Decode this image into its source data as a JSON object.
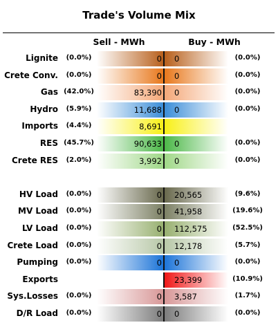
{
  "title": "Trade's Volume Mix",
  "headers": {
    "sell": "Sell - MWh",
    "buy": "Buy - MWh"
  },
  "chart_data": {
    "type": "table",
    "title": "Trade's Volume Mix",
    "columns": [
      "Sell - MWh",
      "Buy - MWh"
    ],
    "rows": [
      {
        "name": "Lignite",
        "sell_pct": "(0.0%)",
        "sell": "0",
        "buy": "0",
        "buy_pct": "(0.0%)",
        "color": "#b8601c"
      },
      {
        "name": "Crete Conv.",
        "sell_pct": "(0.0%)",
        "sell": "0",
        "buy": "0",
        "buy_pct": "(0.0%)",
        "color": "#e8781c"
      },
      {
        "name": "Gas",
        "sell_pct": "(42.0%)",
        "sell": "83,390",
        "buy": "0",
        "buy_pct": "(0.0%)",
        "color": "#f4a878"
      },
      {
        "name": "Hydro",
        "sell_pct": "(5.9%)",
        "sell": "11,688",
        "buy": "0",
        "buy_pct": "(0.0%)",
        "color": "#3c8ed8"
      },
      {
        "name": "Imports",
        "sell_pct": "(4.4%)",
        "sell": "8,691",
        "buy": "",
        "buy_pct": "",
        "color": "#f8f018"
      },
      {
        "name": "RES",
        "sell_pct": "(45.7%)",
        "sell": "90,633",
        "buy": "0",
        "buy_pct": "(0.0%)",
        "color": "#4cb848"
      },
      {
        "name": "Crete RES",
        "sell_pct": "(2.0%)",
        "sell": "3,992",
        "buy": "0",
        "buy_pct": "(0.0%)",
        "color": "#a0d888"
      },
      {
        "name": "",
        "sell_pct": "",
        "sell": "",
        "buy": "",
        "buy_pct": "",
        "color": ""
      },
      {
        "name": "HV Load",
        "sell_pct": "(0.0%)",
        "sell": "0",
        "buy": "20,565",
        "buy_pct": "(9.6%)",
        "color": "#68684c"
      },
      {
        "name": "MV Load",
        "sell_pct": "(0.0%)",
        "sell": "0",
        "buy": "41,958",
        "buy_pct": "(19.6%)",
        "color": "#7c8064"
      },
      {
        "name": "LV Load",
        "sell_pct": "(0.0%)",
        "sell": "0",
        "buy": "112,575",
        "buy_pct": "(52.5%)",
        "color": "#98b070"
      },
      {
        "name": "Crete Load",
        "sell_pct": "(0.0%)",
        "sell": "0",
        "buy": "12,178",
        "buy_pct": "(5.7%)",
        "color": "#b8c8a8"
      },
      {
        "name": "Pumping",
        "sell_pct": "(0.0%)",
        "sell": "0",
        "buy": "0",
        "buy_pct": "(0.0%)",
        "color": "#1c74d8"
      },
      {
        "name": "Exports",
        "sell_pct": "",
        "sell": "",
        "buy": "23,399",
        "buy_pct": "(10.9%)",
        "color": "#f01818"
      },
      {
        "name": "Sys.Losses",
        "sell_pct": "(0.0%)",
        "sell": "0",
        "buy": "3,587",
        "buy_pct": "(1.7%)",
        "color": "#d89898"
      },
      {
        "name": "D/R Load",
        "sell_pct": "(0.0%)",
        "sell": "0",
        "buy": "0",
        "buy_pct": "(0.0%)",
        "color": "#7c7c7c"
      }
    ]
  }
}
